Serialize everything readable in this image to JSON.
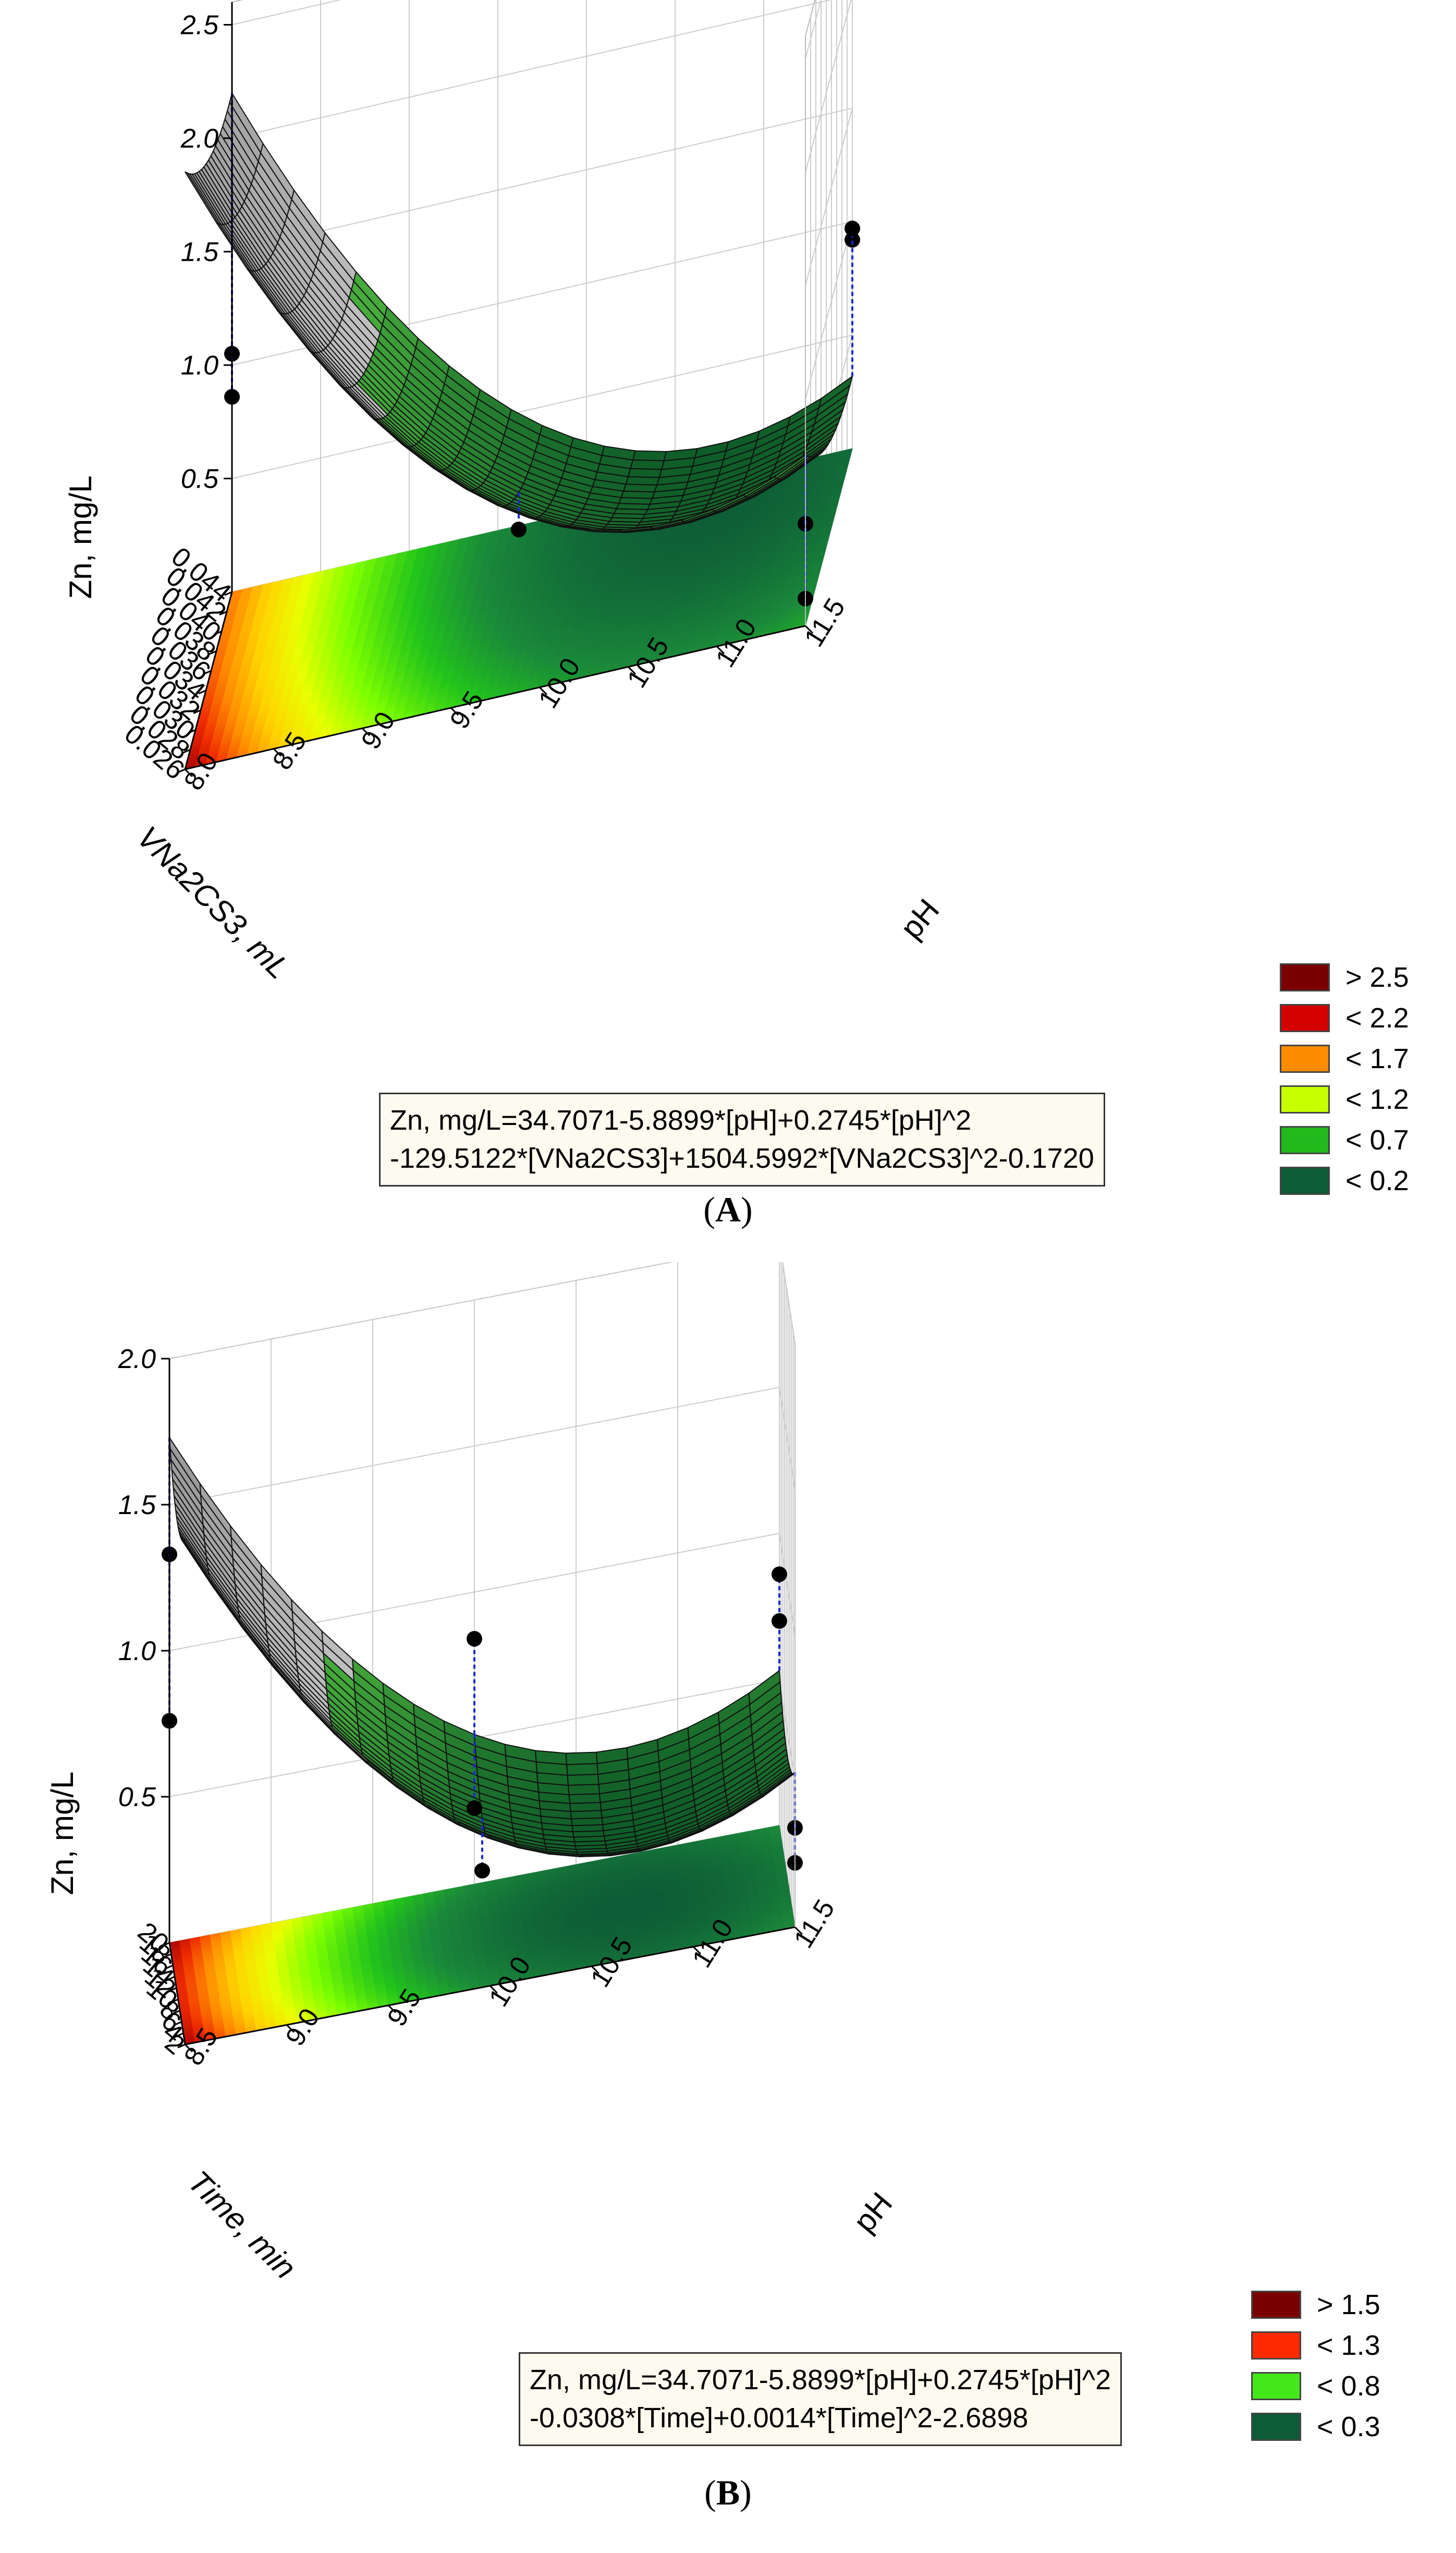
{
  "panels": [
    {
      "label": "A",
      "z_axis_label": "Zn, mg/L",
      "y_axis_label": "VNa2CS3, mL",
      "x_axis_label": "pH",
      "equation_line1": "Zn, mg/L=34.7071-5.8899*[pH]+0.2745*[pH]^2",
      "equation_line2": "-129.5122*[VNa2CS3]+1504.5992*[VNa2CS3]^2-0.1720",
      "legend": [
        {
          "label": "> 2.5",
          "color": "#7a0000"
        },
        {
          "label": "< 2.2",
          "color": "#d40000"
        },
        {
          "label": "< 1.7",
          "color": "#ff8c00"
        },
        {
          "label": "< 1.2",
          "color": "#c8ff00"
        },
        {
          "label": "< 0.7",
          "color": "#22b91c"
        },
        {
          "label": "< 0.2",
          "color": "#0e5c37"
        }
      ]
    },
    {
      "label": "B",
      "z_axis_label": "Zn, mg/L",
      "y_axis_label": "Time, min",
      "x_axis_label": "pH",
      "equation_line1": "Zn, mg/L=34.7071-5.8899*[pH]+0.2745*[pH]^2",
      "equation_line2": "-0.0308*[Time]+0.0014*[Time]^2-2.6898",
      "legend": [
        {
          "label": "> 1.5",
          "color": "#7a0000"
        },
        {
          "label": "< 1.3",
          "color": "#ff2a00"
        },
        {
          "label": "< 0.8",
          "color": "#44e81a"
        },
        {
          "label": "< 0.3",
          "color": "#0e5c37"
        }
      ]
    }
  ],
  "chart_data": [
    {
      "type": "surface",
      "title": "",
      "zlabel": "Zn, mg/L",
      "ylabel": "VNa2CS3, mL",
      "xlabel": "pH",
      "x_ticks": [
        "8.0",
        "8.5",
        "9.0",
        "9.5",
        "10.0",
        "10.5",
        "11.0",
        "11.5"
      ],
      "y_ticks": [
        "0.026",
        "0.028",
        "0.030",
        "0.032",
        "0.034",
        "0.036",
        "0.038",
        "0.040",
        "0.042",
        "0.044"
      ],
      "z_ticks": [
        "0.5",
        "1.0",
        "1.5",
        "2.0",
        "2.5"
      ],
      "xlim": [
        8.0,
        11.5
      ],
      "ylim": [
        0.026,
        0.044
      ],
      "zlim": [
        0.0,
        2.6
      ],
      "model": {
        "c0": 34.7071,
        "x": -5.8899,
        "xx": 0.2745,
        "y": -129.5122,
        "yy": 1504.5992,
        "offset": -0.172
      },
      "observed_points": [
        {
          "x": 8.0,
          "y": 0.044,
          "z": 1.05
        },
        {
          "x": 8.0,
          "y": 0.044,
          "z": 0.86
        },
        {
          "x": 9.75,
          "y": 0.035,
          "z": 0.35
        },
        {
          "x": 11.5,
          "y": 0.044,
          "z": 0.92
        },
        {
          "x": 11.5,
          "y": 0.044,
          "z": 0.97
        },
        {
          "x": 11.5,
          "y": 0.026,
          "z": 0.45
        },
        {
          "x": 11.5,
          "y": 0.026,
          "z": 0.12
        }
      ]
    },
    {
      "type": "surface",
      "title": "",
      "zlabel": "Zn, mg/L",
      "ylabel": "Time, min",
      "xlabel": "pH",
      "x_ticks": [
        "8.5",
        "9.0",
        "9.5",
        "10.0",
        "10.5",
        "11.0",
        "11.5"
      ],
      "y_ticks": [
        "2",
        "4",
        "6",
        "8",
        "10",
        "12",
        "14",
        "16",
        "18",
        "20"
      ],
      "z_ticks": [
        "0.5",
        "1.0",
        "1.5",
        "2.0"
      ],
      "xlim": [
        8.5,
        11.5
      ],
      "ylim": [
        2,
        20
      ],
      "zlim": [
        0.0,
        2.0
      ],
      "model": {
        "c0": 34.7071,
        "x": -5.8899,
        "xx": 0.2745,
        "y": -0.0308,
        "yy": 0.0014,
        "offset": -2.6898
      },
      "observed_points": [
        {
          "x": 8.5,
          "y": 20,
          "z": 1.33
        },
        {
          "x": 8.5,
          "y": 20,
          "z": 0.76
        },
        {
          "x": 10.0,
          "y": 20,
          "z": 0.84
        },
        {
          "x": 10.0,
          "y": 20,
          "z": 0.26
        },
        {
          "x": 10.0,
          "y": 11,
          "z": 0.22
        },
        {
          "x": 11.5,
          "y": 20,
          "z": 0.86
        },
        {
          "x": 11.5,
          "y": 20,
          "z": 0.7
        },
        {
          "x": 11.5,
          "y": 2,
          "z": 0.34
        },
        {
          "x": 11.5,
          "y": 2,
          "z": 0.22
        }
      ]
    }
  ]
}
